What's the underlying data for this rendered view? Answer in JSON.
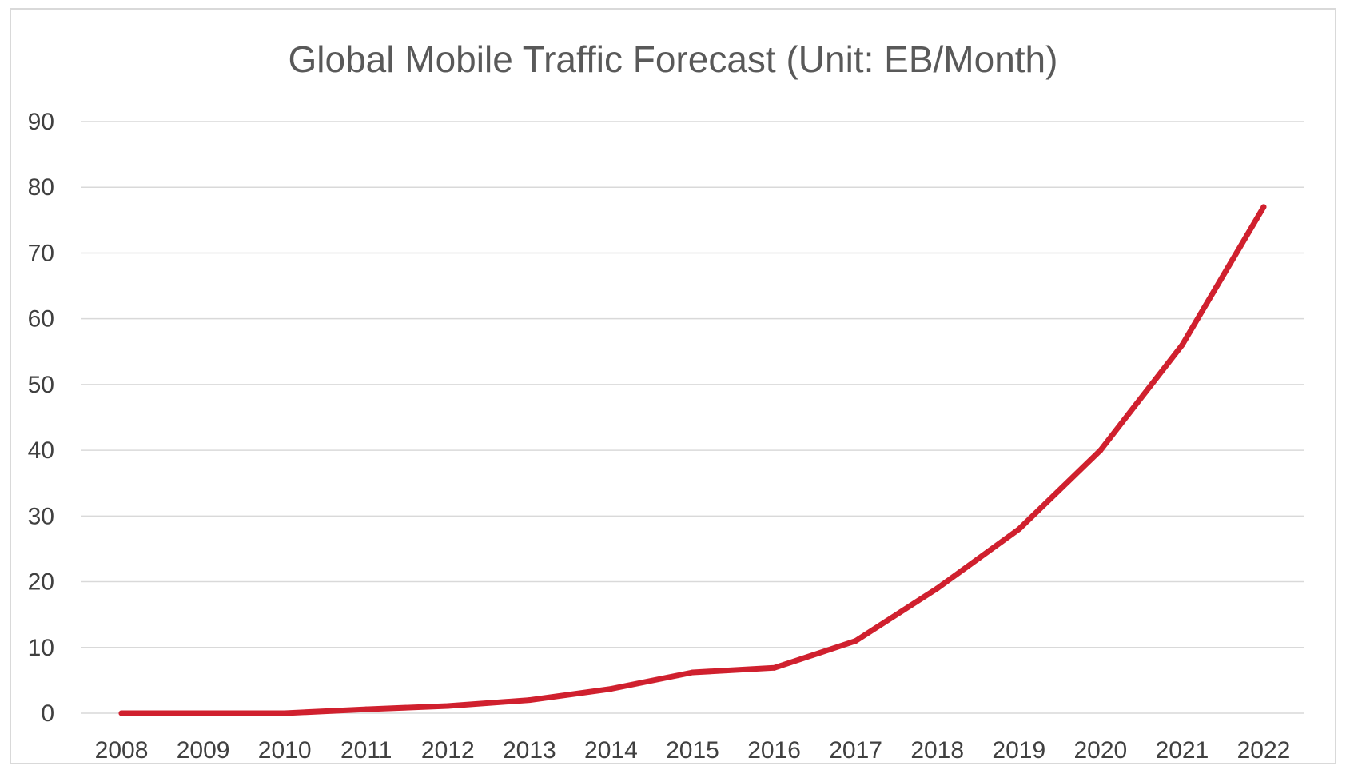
{
  "chart_data": {
    "type": "line",
    "title": "Global Mobile Traffic Forecast (Unit: EB/Month)",
    "xlabel": "",
    "ylabel": "",
    "ylim": [
      0,
      90
    ],
    "yticks": [
      0,
      10,
      20,
      30,
      40,
      50,
      60,
      70,
      80,
      90
    ],
    "grid": true,
    "categories": [
      "2008",
      "2009",
      "2010",
      "2011",
      "2012",
      "2013",
      "2014",
      "2015",
      "2016",
      "2017",
      "2018",
      "2019",
      "2020",
      "2021",
      "2022"
    ],
    "series": [
      {
        "name": "Global Mobile Traffic",
        "color": "#d0202e",
        "values": [
          0,
          0,
          0,
          0.6,
          1.1,
          2.0,
          3.7,
          6.2,
          6.9,
          11.0,
          19.0,
          28.0,
          40.0,
          56.0,
          77.0
        ]
      }
    ]
  }
}
